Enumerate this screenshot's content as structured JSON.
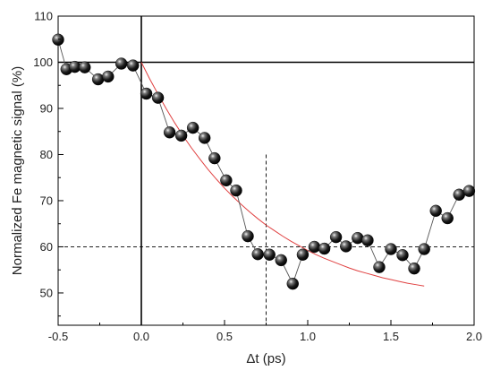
{
  "chart_data": {
    "type": "scatter",
    "xlabel": "Δt (ps)",
    "ylabel": "Normalized Fe magnetic signal (%)",
    "xlim": [
      -0.5,
      2.0
    ],
    "ylim": [
      43,
      110
    ],
    "x_ticks": [
      -0.5,
      0.0,
      0.5,
      1.0,
      1.5,
      2.0
    ],
    "x_tick_labels": [
      "-0.5",
      "0.0",
      "0.5",
      "1.0",
      "1.5",
      "2.0"
    ],
    "y_ticks": [
      50,
      60,
      70,
      80,
      90,
      100,
      110
    ],
    "y_tick_labels": [
      "50",
      "60",
      "70",
      "80",
      "90",
      "100",
      "110"
    ],
    "series": [
      {
        "kind": "markers-with-line",
        "color": "#000000",
        "x": [
          -0.5,
          -0.45,
          -0.4,
          -0.34,
          -0.26,
          -0.2,
          -0.12,
          -0.05,
          0.03,
          0.1,
          0.17,
          0.24,
          0.31,
          0.38,
          0.44,
          0.51,
          0.57,
          0.64,
          0.7,
          0.77,
          0.84,
          0.91,
          0.97,
          1.04,
          1.1,
          1.17,
          1.23,
          1.3,
          1.36,
          1.43,
          1.5,
          1.57,
          1.64,
          1.7,
          1.77,
          1.84,
          1.91,
          1.97
        ],
        "y": [
          104.9,
          98.5,
          99.0,
          98.9,
          96.3,
          96.9,
          99.7,
          99.3,
          93.2,
          92.3,
          84.8,
          84.1,
          85.8,
          83.6,
          79.2,
          74.4,
          72.2,
          62.3,
          58.4,
          58.3,
          57.1,
          52.0,
          58.3,
          60.0,
          59.6,
          62.1,
          60.1,
          61.9,
          61.4,
          55.6,
          59.5,
          58.2,
          55.3,
          59.5,
          67.8,
          66.2,
          71.3,
          72.1
        ]
      },
      {
        "kind": "fit",
        "color": "#e04040",
        "x": [
          0.0,
          0.05,
          0.1,
          0.15,
          0.2,
          0.25,
          0.3,
          0.35,
          0.4,
          0.45,
          0.5,
          0.55,
          0.6,
          0.65,
          0.7,
          0.75,
          0.8,
          0.85,
          0.9,
          0.95,
          1.0,
          1.05,
          1.1,
          1.15,
          1.2,
          1.25,
          1.3,
          1.35,
          1.4,
          1.45,
          1.5,
          1.55,
          1.6,
          1.65,
          1.7
        ],
        "y": [
          100.0,
          96.4,
          93.1,
          89.9,
          86.9,
          84.1,
          81.5,
          79.1,
          76.8,
          74.7,
          72.7,
          70.9,
          69.2,
          67.6,
          66.1,
          64.7,
          63.5,
          62.3,
          61.2,
          60.2,
          59.2,
          58.3,
          57.5,
          56.8,
          56.1,
          55.4,
          54.8,
          54.3,
          53.8,
          53.3,
          52.9,
          52.5,
          52.1,
          51.8,
          51.5
        ]
      }
    ],
    "reference_lines": [
      {
        "orientation": "horizontal",
        "value": 100,
        "style": "solid"
      },
      {
        "orientation": "vertical",
        "value": 0.0,
        "style": "solid"
      },
      {
        "orientation": "horizontal",
        "value": 60,
        "style": "dashed"
      },
      {
        "orientation": "vertical",
        "value": 0.75,
        "style": "dashed",
        "y_top": 80
      }
    ],
    "grid": false,
    "legend": "none"
  }
}
